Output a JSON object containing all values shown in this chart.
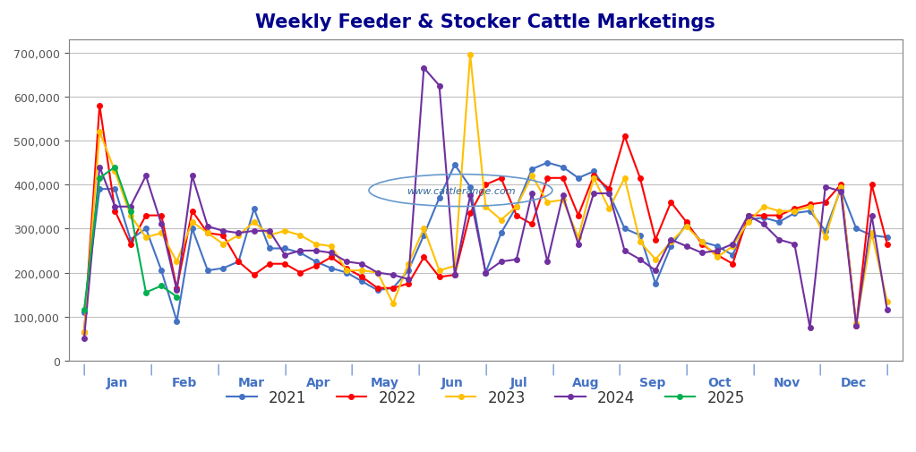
{
  "title": "Weekly Feeder & Stocker Cattle Marketings",
  "title_color": "#00008B",
  "background_color": "#FFFFFF",
  "plot_bg_color": "#FFFFFF",
  "grid_color": "#C0C0C0",
  "watermark": "www.cattlerange.com",
  "ylim": [
    0,
    730000
  ],
  "yticks": [
    0,
    100000,
    200000,
    300000,
    400000,
    500000,
    600000,
    700000
  ],
  "series": {
    "2021": {
      "color": "#4472C4",
      "marker": "o",
      "values": [
        110000,
        390000,
        390000,
        275000,
        300000,
        205000,
        90000,
        300000,
        205000,
        210000,
        225000,
        345000,
        255000,
        255000,
        245000,
        225000,
        210000,
        200000,
        180000,
        160000,
        165000,
        205000,
        285000,
        370000,
        445000,
        395000,
        200000,
        290000,
        350000,
        435000,
        450000,
        440000,
        415000,
        430000,
        380000,
        300000,
        285000,
        175000,
        260000,
        310000,
        270000,
        260000,
        240000,
        320000,
        325000,
        315000,
        335000,
        340000,
        295000,
        390000,
        300000,
        285000,
        280000
      ]
    },
    "2022": {
      "color": "#FF0000",
      "marker": "o",
      "values": [
        65000,
        580000,
        340000,
        265000,
        330000,
        330000,
        165000,
        340000,
        290000,
        285000,
        225000,
        195000,
        220000,
        220000,
        200000,
        215000,
        235000,
        210000,
        190000,
        165000,
        165000,
        175000,
        235000,
        190000,
        195000,
        335000,
        400000,
        415000,
        330000,
        310000,
        415000,
        415000,
        330000,
        420000,
        390000,
        510000,
        415000,
        275000,
        360000,
        315000,
        265000,
        240000,
        220000,
        330000,
        330000,
        330000,
        345000,
        355000,
        360000,
        400000,
        80000,
        400000,
        265000
      ]
    },
    "2023": {
      "color": "#FFC000",
      "marker": "o",
      "values": [
        65000,
        520000,
        430000,
        330000,
        280000,
        290000,
        225000,
        315000,
        290000,
        265000,
        285000,
        315000,
        285000,
        295000,
        285000,
        265000,
        260000,
        205000,
        205000,
        200000,
        130000,
        220000,
        300000,
        205000,
        215000,
        695000,
        350000,
        320000,
        350000,
        420000,
        360000,
        365000,
        280000,
        415000,
        345000,
        415000,
        270000,
        230000,
        270000,
        305000,
        270000,
        235000,
        260000,
        315000,
        350000,
        340000,
        340000,
        350000,
        280000,
        395000,
        85000,
        290000,
        135000
      ]
    },
    "2024": {
      "color": "#7030A0",
      "marker": "o",
      "values": [
        50000,
        440000,
        350000,
        350000,
        420000,
        310000,
        160000,
        420000,
        305000,
        295000,
        290000,
        295000,
        295000,
        240000,
        250000,
        250000,
        245000,
        225000,
        220000,
        200000,
        195000,
        185000,
        665000,
        625000,
        195000,
        375000,
        200000,
        225000,
        230000,
        380000,
        225000,
        375000,
        265000,
        380000,
        380000,
        250000,
        230000,
        205000,
        275000,
        260000,
        245000,
        250000,
        265000,
        330000,
        310000,
        275000,
        265000,
        75000,
        395000,
        385000,
        80000,
        330000,
        115000
      ]
    },
    "2025": {
      "color": "#00B050",
      "marker": "o",
      "values": [
        115000,
        415000,
        440000,
        340000,
        155000,
        170000,
        145000,
        null,
        null,
        null,
        null,
        null,
        null,
        null,
        null,
        null,
        null,
        null,
        null,
        null,
        null,
        null,
        null,
        null,
        null,
        null,
        null,
        null,
        null,
        null,
        null,
        null,
        null,
        null,
        null,
        null,
        null,
        null,
        null,
        null,
        null,
        null,
        null,
        null,
        null,
        null,
        null,
        null,
        null,
        null,
        null,
        null,
        null
      ]
    }
  },
  "month_labels": [
    "Jan",
    "Feb",
    "Mar",
    "Apr",
    "May",
    "Jun",
    "Jul",
    "Aug",
    "Sep",
    "Oct",
    "Nov",
    "Dec"
  ],
  "month_ticks_x": [
    0,
    4.33,
    8.66,
    13,
    17.33,
    21.66,
    26,
    30.33,
    34.66,
    39,
    43.33,
    47.66,
    52
  ],
  "legend_labels": [
    "2021",
    "2022",
    "2023",
    "2024",
    "2025"
  ],
  "legend_colors": [
    "#4472C4",
    "#FF0000",
    "#FFC000",
    "#7030A0",
    "#00B050"
  ]
}
